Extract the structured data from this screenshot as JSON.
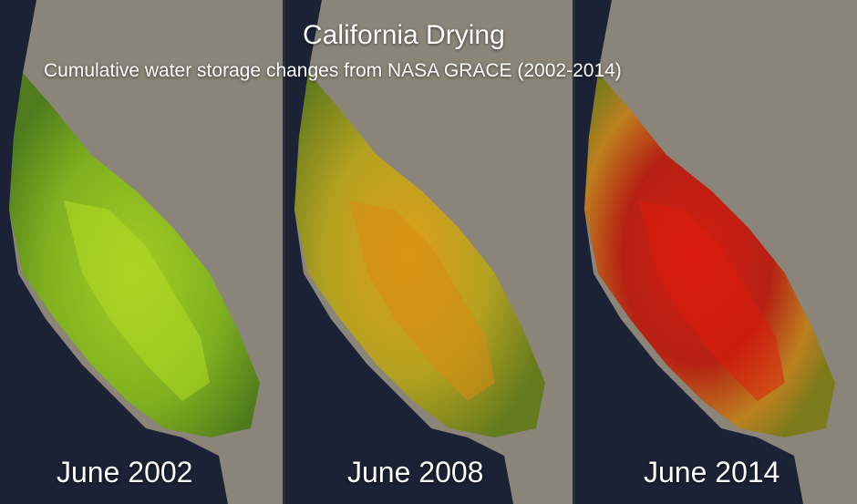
{
  "title": "California Drying",
  "subtitle": "Cumulative water storage changes from NASA GRACE (2002-2014)",
  "panels": [
    {
      "label": "June 2002",
      "level": 0.0
    },
    {
      "label": "June 2008",
      "level": 0.5
    },
    {
      "label": "June 2014",
      "level": 1.0
    }
  ],
  "colors": {
    "ocean": "#1c2236",
    "land": "#8a8578",
    "wet": "#8fc21a",
    "moderate": "#d8a012",
    "dry": "#c8140c"
  }
}
